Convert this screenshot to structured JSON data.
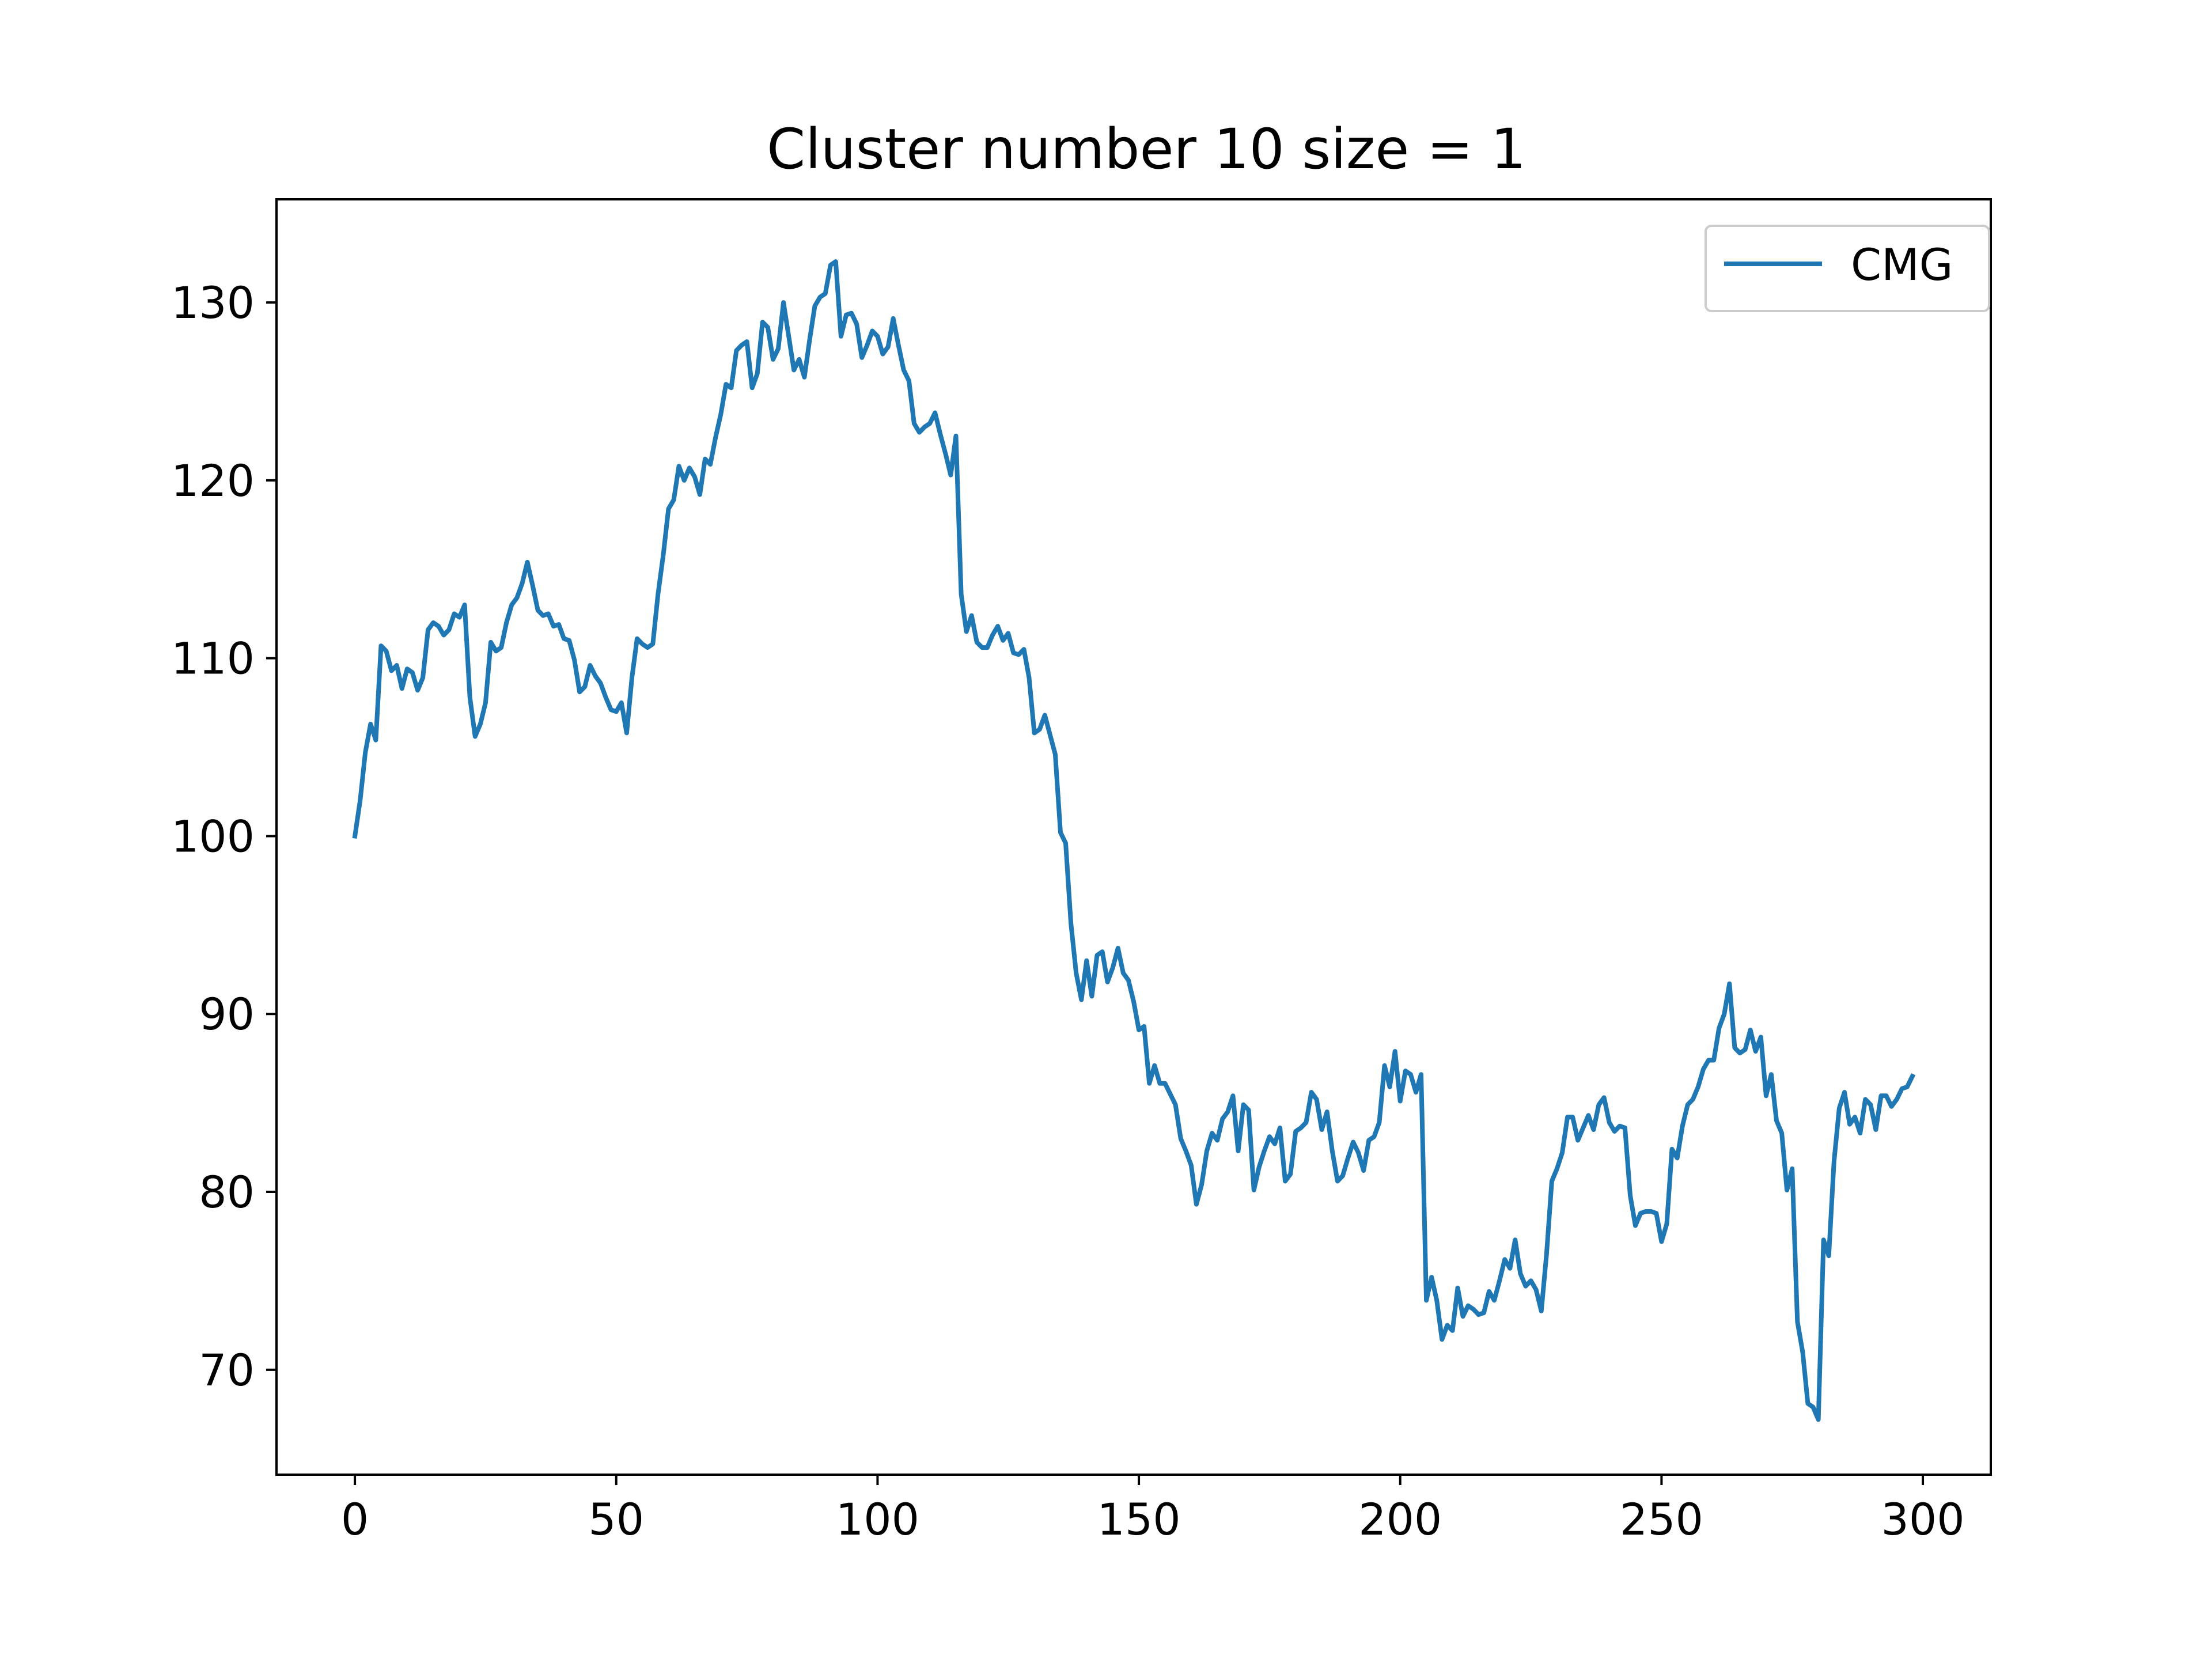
{
  "chart_data": {
    "type": "line",
    "title": "Cluster number 10 size = 1",
    "xlabel": "",
    "ylabel": "",
    "xlim": [
      -15,
      313
    ],
    "ylim": [
      64.1,
      135.8
    ],
    "xticks": [
      0,
      50,
      100,
      150,
      200,
      250,
      300
    ],
    "yticks": [
      70,
      80,
      90,
      100,
      110,
      120,
      130
    ],
    "grid": false,
    "legend_position": "top-right",
    "colors": {
      "series": "#1f77b4",
      "axes": "#000000",
      "background": "#ffffff"
    },
    "series": [
      {
        "name": "CMG",
        "x": [
          0,
          1,
          2,
          3,
          4,
          5,
          6,
          7,
          8,
          9,
          10,
          11,
          12,
          13,
          14,
          15,
          16,
          17,
          18,
          19,
          20,
          21,
          22,
          23,
          24,
          25,
          26,
          27,
          28,
          29,
          30,
          31,
          32,
          33,
          34,
          35,
          36,
          37,
          38,
          39,
          40,
          41,
          42,
          43,
          44,
          45,
          46,
          47,
          48,
          49,
          50,
          51,
          52,
          53,
          54,
          55,
          56,
          57,
          58,
          59,
          60,
          61,
          62,
          63,
          64,
          65,
          66,
          67,
          68,
          69,
          70,
          71,
          72,
          73,
          74,
          75,
          76,
          77,
          78,
          79,
          80,
          81,
          82,
          83,
          84,
          85,
          86,
          87,
          88,
          89,
          90,
          91,
          92,
          93,
          94,
          95,
          96,
          97,
          98,
          99,
          100,
          101,
          102,
          103,
          104,
          105,
          106,
          107,
          108,
          109,
          110,
          111,
          112,
          113,
          114,
          115,
          116,
          117,
          118,
          119,
          120,
          121,
          122,
          123,
          124,
          125,
          126,
          127,
          128,
          129,
          130,
          131,
          132,
          133,
          134,
          135,
          136,
          137,
          138,
          139,
          140,
          141,
          142,
          143,
          144,
          145,
          146,
          147,
          148,
          149,
          150,
          151,
          152,
          153,
          154,
          155,
          156,
          157,
          158,
          159,
          160,
          161,
          162,
          163,
          164,
          165,
          166,
          167,
          168,
          169,
          170,
          171,
          172,
          173,
          174,
          175,
          176,
          177,
          178,
          179,
          180,
          181,
          182,
          183,
          184,
          185,
          186,
          187,
          188,
          189,
          190,
          191,
          192,
          193,
          194,
          195,
          196,
          197,
          198,
          199,
          200,
          201,
          202,
          203,
          204,
          205,
          206,
          207,
          208,
          209,
          210,
          211,
          212,
          213,
          214,
          215,
          216,
          217,
          218,
          219,
          220,
          221,
          222,
          223,
          224,
          225,
          226,
          227,
          228,
          229,
          230,
          231,
          232,
          233,
          234,
          235,
          236,
          237,
          238,
          239,
          240,
          241,
          242,
          243,
          244,
          245,
          246,
          247,
          248,
          249,
          250,
          251,
          252,
          253,
          254,
          255,
          256,
          257,
          258,
          259,
          260,
          261,
          262,
          263,
          264,
          265,
          266,
          267,
          268,
          269,
          270,
          271,
          272,
          273,
          274,
          275,
          276,
          277,
          278,
          279,
          280,
          281,
          282,
          283,
          284,
          285,
          286,
          287,
          288,
          289,
          290,
          291,
          292,
          293,
          294,
          295,
          296,
          297,
          298
        ],
        "y": [
          100.0,
          102.0,
          104.7,
          106.3,
          105.4,
          110.7,
          110.4,
          109.3,
          109.6,
          108.3,
          109.4,
          109.2,
          108.2,
          108.9,
          111.6,
          112.0,
          111.8,
          111.3,
          111.6,
          112.5,
          112.3,
          113.0,
          107.8,
          105.6,
          106.3,
          107.5,
          110.9,
          110.4,
          110.6,
          112.0,
          113.0,
          113.4,
          114.2,
          115.4,
          114.1,
          112.7,
          112.4,
          112.5,
          111.8,
          111.9,
          111.1,
          111.0,
          109.9,
          108.1,
          108.4,
          109.6,
          109.0,
          108.6,
          107.8,
          107.1,
          107.0,
          107.5,
          105.8,
          108.9,
          111.1,
          110.8,
          110.6,
          110.8,
          113.6,
          115.8,
          118.4,
          118.9,
          120.8,
          120.0,
          120.7,
          120.2,
          119.2,
          121.2,
          120.9,
          122.4,
          123.7,
          125.4,
          125.2,
          127.3,
          127.6,
          127.8,
          125.2,
          126.0,
          128.9,
          128.6,
          126.8,
          127.4,
          130.0,
          128.1,
          126.2,
          126.8,
          125.8,
          127.9,
          129.8,
          130.3,
          130.5,
          132.1,
          132.3,
          128.1,
          129.3,
          129.4,
          128.8,
          126.9,
          127.6,
          128.4,
          128.1,
          127.1,
          127.5,
          129.1,
          127.6,
          126.2,
          125.6,
          123.2,
          122.7,
          123.0,
          123.2,
          123.8,
          122.6,
          121.5,
          120.3,
          122.5,
          113.6,
          111.5,
          112.4,
          110.9,
          110.6,
          110.6,
          111.3,
          111.8,
          111.0,
          111.4,
          110.3,
          110.2,
          110.5,
          108.9,
          105.8,
          106.0,
          106.8,
          105.7,
          104.6,
          100.2,
          99.6,
          95.1,
          92.3,
          90.8,
          93.0,
          91.0,
          93.3,
          93.5,
          91.8,
          92.6,
          93.7,
          92.3,
          91.9,
          90.7,
          89.1,
          89.3,
          86.1,
          87.1,
          86.1,
          86.1,
          85.5,
          84.9,
          83.0,
          82.3,
          81.5,
          79.3,
          80.4,
          82.3,
          83.3,
          82.9,
          84.1,
          84.5,
          85.4,
          82.3,
          84.9,
          84.6,
          80.1,
          81.4,
          82.3,
          83.1,
          82.7,
          83.6,
          80.6,
          81.0,
          83.4,
          83.6,
          83.9,
          85.6,
          85.2,
          83.5,
          84.5,
          82.3,
          80.6,
          80.9,
          81.9,
          82.8,
          82.2,
          81.2,
          82.9,
          83.1,
          83.9,
          87.1,
          85.9,
          87.9,
          85.1,
          86.8,
          86.6,
          85.6,
          86.6,
          73.9,
          75.2,
          73.9,
          71.7,
          72.5,
          72.2,
          74.6,
          73.0,
          73.6,
          73.4,
          73.1,
          73.2,
          74.4,
          73.9,
          75.0,
          76.2,
          75.7,
          77.3,
          75.4,
          74.7,
          75.0,
          74.5,
          73.3,
          76.5,
          80.6,
          81.3,
          82.2,
          84.2,
          84.2,
          82.9,
          83.6,
          84.3,
          83.5,
          84.9,
          85.3,
          83.9,
          83.4,
          83.7,
          83.6,
          79.8,
          78.1,
          78.8,
          78.9,
          78.9,
          78.8,
          77.2,
          78.2,
          82.4,
          81.9,
          83.7,
          84.9,
          85.2,
          85.9,
          86.9,
          87.4,
          87.4,
          89.2,
          90.0,
          91.7,
          88.1,
          87.8,
          88.0,
          89.1,
          87.9,
          88.7,
          85.4,
          86.6,
          84.0,
          83.3,
          80.1,
          81.3,
          72.7,
          71.0,
          68.1,
          67.9,
          67.2,
          77.3,
          76.4,
          81.7,
          84.7,
          85.6,
          83.8,
          84.2,
          83.3,
          85.2,
          84.9,
          83.5,
          85.4,
          85.4,
          84.8,
          85.2,
          85.8,
          85.9,
          86.5
        ]
      }
    ]
  }
}
